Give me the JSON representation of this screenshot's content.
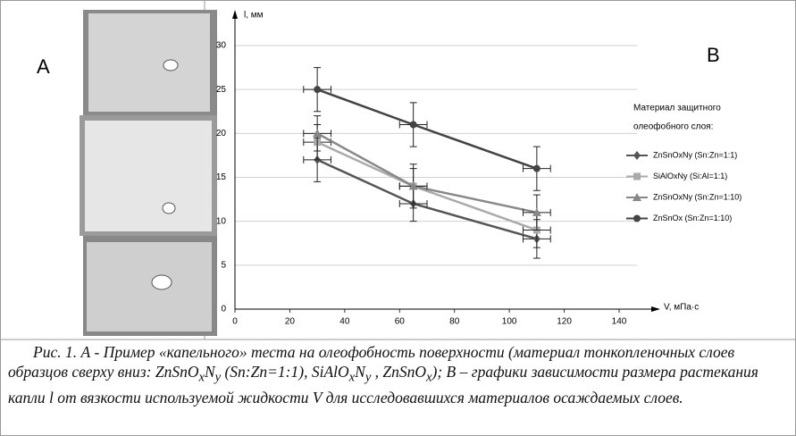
{
  "panel_a": {
    "label": "A"
  },
  "panel_b": {
    "label": "B"
  },
  "chart_data": {
    "type": "line",
    "y_label": "l, мм",
    "x_label": "V, мПа·с",
    "x": [
      30,
      65,
      110
    ],
    "xlim": [
      0,
      140
    ],
    "xticks": [
      0,
      20,
      40,
      60,
      80,
      100,
      120,
      140
    ],
    "ylim": [
      0,
      30
    ],
    "yticks": [
      0,
      5,
      10,
      15,
      20,
      25,
      30
    ],
    "grid": true,
    "legend_title": [
      "Материал защитного",
      "олеофобного слоя:"
    ],
    "series": [
      {
        "name": "ZnSnOxNy (Sn:Zn=1:1)",
        "color": "#555555",
        "marker": "diamond",
        "values": [
          17,
          12,
          8
        ],
        "errors": [
          2.5,
          2,
          2.2
        ],
        "xerrors": [
          5,
          5,
          5
        ]
      },
      {
        "name": "SiAlOxNy (Si:Al=1:1)",
        "color": "#aaaaaa",
        "marker": "square",
        "values": [
          19,
          14,
          9
        ],
        "errors": [
          2,
          2,
          2
        ],
        "xerrors": [
          5,
          5,
          5
        ]
      },
      {
        "name": "ZnSnOxNy (Sn:Zn=1:10)",
        "color": "#888888",
        "marker": "triangle",
        "values": [
          20,
          14,
          11
        ],
        "errors": [
          2,
          2.5,
          2
        ],
        "xerrors": [
          5,
          5,
          5
        ]
      },
      {
        "name": "ZnSnOx (Sn:Zn=1:10)",
        "color": "#444444",
        "marker": "circle",
        "values": [
          25,
          21,
          16
        ],
        "errors": [
          2.5,
          2.5,
          2.5
        ],
        "xerrors": [
          5,
          5,
          5
        ]
      }
    ]
  },
  "caption": [
    "Рис. 1. А - Пример «капельного» теста на олеофобность поверхности (материал тонкопленочных слоев образцов сверху вниз: ZnSnO",
    "x",
    "N",
    "y",
    " (Sn:Zn=1:1), SiAlO",
    "x",
    "N",
    "y",
    " , ZnSnO",
    "x",
    "); В – графики зависимости размера растекания капли l от вязкости используемой жидкости V для исследовавшихся материалов осаждаемых слоев."
  ]
}
